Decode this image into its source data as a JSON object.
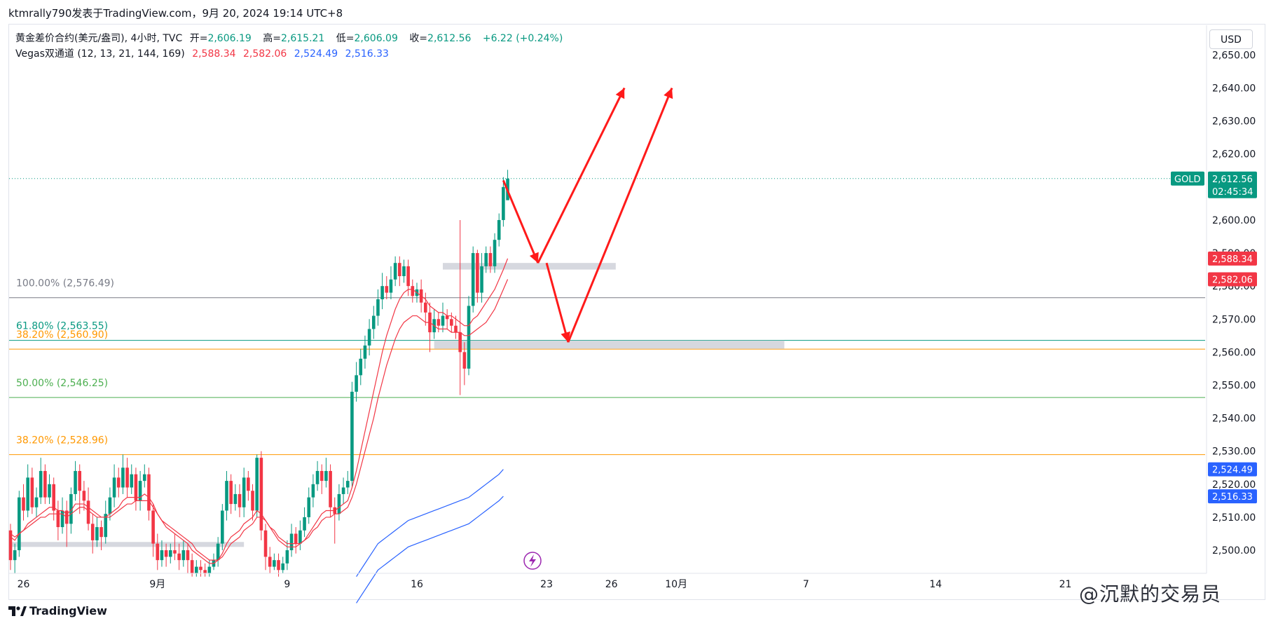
{
  "header": {
    "attribution": "ktmrally790发表于TradingView.com，9月 20, 2024 19:14 UTC+8"
  },
  "legend": {
    "symbol_line": "黄金差价合约(美元/盎司), 4小时, TVC",
    "open_label": "开=",
    "open": "2,606.19",
    "high_label": "高=",
    "high": "2,615.21",
    "low_label": "低=",
    "low": "2,606.09",
    "close_label": "收=",
    "close": "2,612.56",
    "change": "+6.22 (+0.24%)",
    "indicator_name": "Vegas双通道 (12, 13, 21, 144, 169)",
    "ind_values": [
      "2,588.34",
      "2,582.06",
      "2,524.49",
      "2,516.33"
    ]
  },
  "currency_button": "USD",
  "price_badge": {
    "symbol": "GOLD",
    "price": "2,612.56",
    "countdown": "02:45:34"
  },
  "colors": {
    "up": "#089981",
    "down": "#f23645",
    "ema_red": "#f23645",
    "ema_blue": "#2962ff",
    "fib_100": "#787b86",
    "fib_618": "#089981",
    "fib_382": "#ff9800",
    "fib_50": "#4caf50",
    "arrow": "#ff1a1a",
    "zone": "#d1d4dc"
  },
  "footer": {
    "brand": "TradingView",
    "watermark": "@沉默的交易员"
  },
  "chart_data": {
    "type": "candlestick",
    "timeframe": "4h",
    "ylim": [
      2493,
      2659
    ],
    "y_ticks": [
      2500,
      2510,
      2520,
      2530,
      2540,
      2550,
      2560,
      2570,
      2580,
      2590,
      2600,
      2610,
      2620,
      2630,
      2640,
      2650
    ],
    "y_tick_labels": [
      "2,500.00",
      "2,510.00",
      "2,520.00",
      "2,530.00",
      "2,540.00",
      "2,550.00",
      "2,560.00",
      "2,570.00",
      "2,580.00",
      "2,590.00",
      "2,600.00",
      "2,610.00",
      "2,620.00",
      "2,630.00",
      "2,640.00",
      "2,650.00"
    ],
    "x_labels": [
      "26",
      "9月",
      "9",
      "16",
      "23",
      "26",
      "10月",
      "7",
      "14",
      "21"
    ],
    "x_label_bar_index": [
      3,
      34,
      64,
      94,
      124,
      139,
      154,
      184,
      214,
      244
    ],
    "price_line": 2612.56,
    "fib_levels": [
      {
        "label": "100.00% (2,576.49)",
        "value": 2576.49,
        "color_key": "fib_100"
      },
      {
        "label": "61.80% (2,563.55)",
        "value": 2563.55,
        "color_key": "fib_618"
      },
      {
        "label": "38.20% (2,560.90)",
        "value": 2560.9,
        "color_key": "fib_382"
      },
      {
        "label": "50.00% (2,546.25)",
        "value": 2546.25,
        "color_key": "fib_50"
      },
      {
        "label": "38.20% (2,528.96)",
        "value": 2528.96,
        "color_key": "fib_382"
      }
    ],
    "zones": [
      {
        "from_bar": 0,
        "to_bar": 54,
        "low": 2501,
        "high": 2502.5
      },
      {
        "from_bar": 100,
        "to_bar": 140,
        "low": 2585,
        "high": 2587
      },
      {
        "from_bar": 98,
        "to_bar": 179,
        "low": 2561,
        "high": 2563.5
      }
    ],
    "candles": [
      [
        2506,
        2497,
        2508,
        2494
      ],
      [
        2497,
        2500,
        2502,
        2493
      ],
      [
        2500,
        2516,
        2518,
        2498
      ],
      [
        2516,
        2512,
        2520,
        2509
      ],
      [
        2512,
        2522,
        2526,
        2510
      ],
      [
        2522,
        2513,
        2525,
        2511
      ],
      [
        2513,
        2516,
        2519,
        2510
      ],
      [
        2516,
        2524,
        2528,
        2514
      ],
      [
        2524,
        2516,
        2526,
        2514
      ],
      [
        2516,
        2520,
        2523,
        2514
      ],
      [
        2520,
        2512,
        2522,
        2509
      ],
      [
        2512,
        2507,
        2515,
        2503
      ],
      [
        2507,
        2512,
        2516,
        2505
      ],
      [
        2512,
        2508,
        2515,
        2501
      ],
      [
        2508,
        2517,
        2519,
        2505
      ],
      [
        2517,
        2524,
        2527,
        2515
      ],
      [
        2524,
        2518,
        2526,
        2511
      ],
      [
        2518,
        2515,
        2521,
        2512
      ],
      [
        2515,
        2508,
        2519,
        2506
      ],
      [
        2508,
        2503,
        2511,
        2499
      ],
      [
        2503,
        2507,
        2510,
        2501
      ],
      [
        2507,
        2504,
        2509,
        2500
      ],
      [
        2504,
        2511,
        2515,
        2502
      ],
      [
        2511,
        2516,
        2519,
        2509
      ],
      [
        2516,
        2522,
        2526,
        2513
      ],
      [
        2522,
        2519,
        2525,
        2516
      ],
      [
        2519,
        2525,
        2529,
        2517
      ],
      [
        2525,
        2519,
        2528,
        2516
      ],
      [
        2519,
        2523,
        2526,
        2517
      ],
      [
        2523,
        2515,
        2525,
        2512
      ],
      [
        2515,
        2521,
        2524,
        2512
      ],
      [
        2521,
        2523,
        2526,
        2519
      ],
      [
        2523,
        2512,
        2525,
        2509
      ],
      [
        2512,
        2502,
        2514,
        2498
      ],
      [
        2502,
        2497,
        2505,
        2494
      ],
      [
        2497,
        2500,
        2503,
        2495
      ],
      [
        2500,
        2498,
        2502,
        2495
      ],
      [
        2498,
        2500,
        2502,
        2496
      ],
      [
        2500,
        2499,
        2505,
        2497
      ],
      [
        2499,
        2497,
        2502,
        2494
      ],
      [
        2497,
        2500,
        2503,
        2495
      ],
      [
        2500,
        2497,
        2502,
        2493
      ],
      [
        2497,
        2493,
        2499,
        2492
      ],
      [
        2493,
        2495,
        2497,
        2492
      ],
      [
        2495,
        2494,
        2497,
        2492
      ],
      [
        2494,
        2493,
        2496,
        2492
      ],
      [
        2493,
        2495,
        2497,
        2492
      ],
      [
        2495,
        2497,
        2499,
        2494
      ],
      [
        2497,
        2502,
        2504,
        2495
      ],
      [
        2502,
        2512,
        2514,
        2500
      ],
      [
        2512,
        2521,
        2524,
        2509
      ],
      [
        2521,
        2514,
        2523,
        2511
      ],
      [
        2514,
        2517,
        2520,
        2512
      ],
      [
        2517,
        2513,
        2520,
        2510
      ],
      [
        2513,
        2522,
        2525,
        2510
      ],
      [
        2522,
        2518,
        2524,
        2515
      ],
      [
        2518,
        2512,
        2520,
        2509
      ],
      [
        2512,
        2528,
        2529,
        2510
      ],
      [
        2528,
        2506,
        2530,
        2503
      ],
      [
        2506,
        2498,
        2508,
        2494
      ],
      [
        2498,
        2495,
        2501,
        2493
      ],
      [
        2495,
        2497,
        2499,
        2494
      ],
      [
        2497,
        2494,
        2499,
        2492
      ],
      [
        2494,
        2496,
        2498,
        2493
      ],
      [
        2496,
        2500,
        2503,
        2494
      ],
      [
        2500,
        2505,
        2508,
        2498
      ],
      [
        2505,
        2502,
        2507,
        2499
      ],
      [
        2502,
        2506,
        2509,
        2500
      ],
      [
        2506,
        2510,
        2513,
        2504
      ],
      [
        2510,
        2516,
        2519,
        2508
      ],
      [
        2516,
        2520,
        2523,
        2513
      ],
      [
        2520,
        2524,
        2527,
        2518
      ],
      [
        2524,
        2521,
        2526,
        2517
      ],
      [
        2521,
        2524,
        2528,
        2519
      ],
      [
        2524,
        2513,
        2526,
        2510
      ],
      [
        2513,
        2511,
        2516,
        2502
      ],
      [
        2511,
        2517,
        2520,
        2509
      ],
      [
        2517,
        2519,
        2522,
        2514
      ],
      [
        2519,
        2521,
        2524,
        2517
      ],
      [
        2521,
        2548,
        2551,
        2519
      ],
      [
        2548,
        2553,
        2557,
        2545
      ],
      [
        2553,
        2558,
        2561,
        2550
      ],
      [
        2558,
        2562,
        2565,
        2555
      ],
      [
        2562,
        2567,
        2570,
        2559
      ],
      [
        2567,
        2571,
        2574,
        2564
      ],
      [
        2571,
        2576,
        2579,
        2568
      ],
      [
        2576,
        2580,
        2584,
        2573
      ],
      [
        2580,
        2578,
        2583,
        2576
      ],
      [
        2578,
        2582,
        2586,
        2576
      ],
      [
        2582,
        2587,
        2589,
        2580
      ],
      [
        2587,
        2583,
        2589,
        2580
      ],
      [
        2583,
        2586,
        2588,
        2581
      ],
      [
        2586,
        2580,
        2588,
        2577
      ],
      [
        2580,
        2577,
        2582,
        2575
      ],
      [
        2577,
        2579,
        2581,
        2575
      ],
      [
        2579,
        2575,
        2582,
        2572
      ],
      [
        2575,
        2572,
        2578,
        2568
      ],
      [
        2572,
        2566,
        2575,
        2560
      ],
      [
        2566,
        2570,
        2573,
        2564
      ],
      [
        2570,
        2568,
        2572,
        2566
      ],
      [
        2568,
        2571,
        2575,
        2566
      ],
      [
        2571,
        2570,
        2573,
        2567
      ],
      [
        2570,
        2568,
        2572,
        2566
      ],
      [
        2568,
        2566,
        2571,
        2564
      ],
      [
        2566,
        2560,
        2600,
        2547
      ],
      [
        2560,
        2555,
        2563,
        2550
      ],
      [
        2555,
        2574,
        2577,
        2553
      ],
      [
        2574,
        2590,
        2592,
        2572
      ],
      [
        2590,
        2578,
        2591,
        2575
      ],
      [
        2578,
        2586,
        2590,
        2575
      ],
      [
        2586,
        2590,
        2592,
        2584
      ],
      [
        2590,
        2586,
        2592,
        2584
      ],
      [
        2586,
        2594,
        2596,
        2584
      ],
      [
        2594,
        2600,
        2602,
        2592
      ],
      [
        2600,
        2610,
        2613,
        2598
      ],
      [
        2606,
        2612.56,
        2615.21,
        2606.09
      ]
    ],
    "ema_red_1": [
      2504,
      2503,
      2505,
      2506,
      2508,
      2509,
      2510,
      2511,
      2512,
      2513,
      2513,
      2512,
      2512,
      2511,
      2512,
      2514,
      2514,
      2514,
      2513,
      2512,
      2511,
      2510,
      2510,
      2511,
      2512,
      2513,
      2515,
      2516,
      2516,
      2516,
      2516,
      2517,
      2516,
      2514,
      2511,
      2509,
      2507,
      2506,
      2505,
      2504,
      2503,
      2502,
      2500,
      2499,
      2498,
      2497,
      2496,
      2496,
      2497,
      2499,
      2502,
      2504,
      2505,
      2506,
      2508,
      2509,
      2510,
      2512,
      2511,
      2509,
      2507,
      2505,
      2503,
      2502,
      2501,
      2501,
      2501,
      2502,
      2503,
      2505,
      2507,
      2509,
      2511,
      2512,
      2512,
      2512,
      2513,
      2514,
      2515,
      2519,
      2524,
      2530,
      2536,
      2542,
      2548,
      2554,
      2560,
      2565,
      2569,
      2573,
      2576,
      2578,
      2579,
      2579,
      2578,
      2577,
      2576,
      2574,
      2573,
      2572,
      2572,
      2571,
      2571,
      2570,
      2569,
      2568,
      2568,
      2570,
      2571,
      2573,
      2575,
      2577,
      2579,
      2582,
      2585,
      2588.34
    ],
    "ema_red_2": [
      2505,
      2504,
      2505,
      2506,
      2507,
      2508,
      2509,
      2510,
      2510,
      2511,
      2511,
      2511,
      2511,
      2510,
      2511,
      2512,
      2513,
      2513,
      2512,
      2511,
      2510,
      2510,
      2510,
      2510,
      2511,
      2512,
      2513,
      2514,
      2514,
      2515,
      2515,
      2515,
      2515,
      2513,
      2511,
      2509,
      2508,
      2507,
      2506,
      2505,
      2504,
      2503,
      2502,
      2500,
      2499,
      2498,
      2497,
      2497,
      2497,
      2498,
      2500,
      2502,
      2503,
      2504,
      2506,
      2507,
      2508,
      2510,
      2510,
      2509,
      2507,
      2506,
      2504,
      2503,
      2502,
      2502,
      2502,
      2502,
      2503,
      2504,
      2506,
      2507,
      2509,
      2510,
      2510,
      2511,
      2511,
      2512,
      2513,
      2516,
      2520,
      2525,
      2530,
      2535,
      2540,
      2546,
      2551,
      2556,
      2560,
      2564,
      2567,
      2569,
      2570,
      2571,
      2571,
      2570,
      2569,
      2569,
      2568,
      2567,
      2567,
      2567,
      2566,
      2566,
      2566,
      2565,
      2565,
      2566,
      2567,
      2568,
      2569,
      2571,
      2573,
      2576,
      2579,
      2582.06
    ],
    "ema_blue_1": {
      "from_bar": 80,
      "values": [
        2492,
        2494,
        2496,
        2498,
        2500,
        2502,
        2503,
        2504,
        2505,
        2506,
        2507,
        2508,
        2509,
        2509.5,
        2510,
        2510.5,
        2511,
        2511.5,
        2512,
        2512.5,
        2513,
        2513.5,
        2514,
        2514.5,
        2515,
        2515.5,
        2516,
        2517,
        2518,
        2519,
        2520,
        2521,
        2522,
        2523,
        2524.49
      ]
    },
    "ema_blue_2": {
      "from_bar": 80,
      "values": [
        2484,
        2486,
        2488,
        2490,
        2492,
        2494,
        2495,
        2496,
        2497,
        2498,
        2499,
        2500,
        2501,
        2501.5,
        2502,
        2502.5,
        2503,
        2503.5,
        2504,
        2504.5,
        2505,
        2505.5,
        2506,
        2506.5,
        2507,
        2507.5,
        2508,
        2509,
        2510,
        2511,
        2512,
        2513,
        2514,
        2515,
        2516.33
      ]
    },
    "forecast_path_1": [
      [
        114,
        2612
      ],
      [
        122,
        2587
      ],
      [
        142,
        2640
      ]
    ],
    "forecast_path_2": [
      [
        124,
        2587
      ],
      [
        129,
        2563
      ],
      [
        153,
        2640
      ]
    ]
  }
}
